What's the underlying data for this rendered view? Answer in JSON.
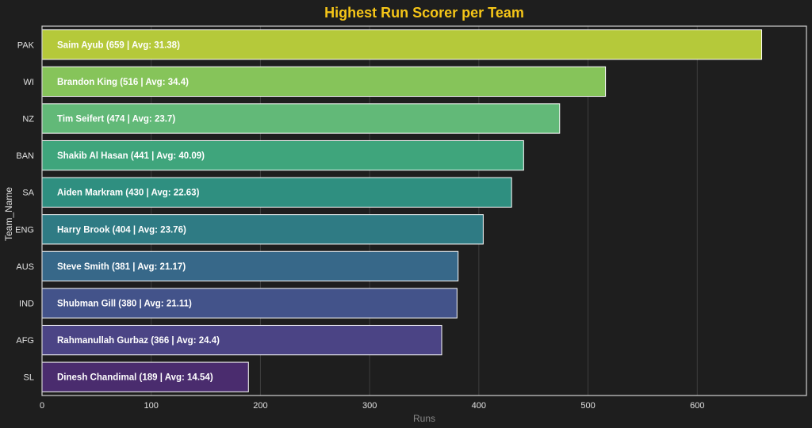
{
  "chart_data": {
    "type": "bar",
    "orientation": "horizontal",
    "title": "Highest Run Scorer per Team",
    "xlabel": "Runs",
    "ylabel": "Team_Name",
    "xlim": [
      0,
      700
    ],
    "xticks": [
      0,
      100,
      200,
      300,
      400,
      500,
      600
    ],
    "grid": "vertical",
    "categories": [
      "PAK",
      "WI",
      "NZ",
      "BAN",
      "SA",
      "ENG",
      "AUS",
      "IND",
      "AFG",
      "SL"
    ],
    "values": [
      659,
      516,
      474,
      441,
      430,
      404,
      381,
      380,
      366,
      189
    ],
    "bar_labels": [
      "Saim Ayub (659 | Avg: 31.38)",
      "Brandon King (516 | Avg: 34.4)",
      "Tim Seifert (474 | Avg: 23.7)",
      "Shakib Al Hasan (441 | Avg: 40.09)",
      "Aiden Markram (430 | Avg: 22.63)",
      "Harry Brook (404 | Avg: 23.76)",
      "Steve Smith (381 | Avg: 21.17)",
      "Shubman Gill (380 | Avg: 21.11)",
      "Rahmanullah Gurbaz (366 | Avg: 24.4)",
      "Dinesh Chandimal (189 | Avg: 14.54)"
    ],
    "colors": [
      "#b5c93a",
      "#86c45a",
      "#62b978",
      "#3fa57c",
      "#2f8f80",
      "#2f7b84",
      "#376889",
      "#43538a",
      "#4b4485",
      "#4a2c6e"
    ]
  },
  "style": {
    "background": "#1e1e1e",
    "title_color": "#f5c518",
    "text_color": "#e0e0e0",
    "axis_label_color": "#888888",
    "grid_color": "#3e3e3e",
    "frame_color": "#d0d0d0",
    "bar_edge_color": "#ffffff"
  }
}
